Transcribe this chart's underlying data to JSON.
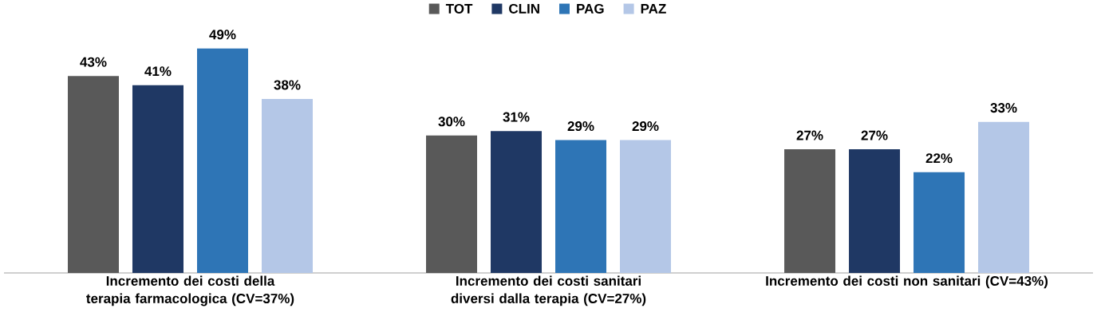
{
  "chart_data": {
    "type": "bar",
    "categories": [
      "Incremento dei costi della terapia farmacologica (CV=37%)",
      "Incremento dei costi sanitari diversi dalla terapia (CV=27%)",
      "Incremento dei costi non sanitari (CV=43%)"
    ],
    "series": [
      {
        "name": "TOT",
        "color": "#595959",
        "values": [
          43,
          30,
          27
        ],
        "value_labels": [
          "43%",
          "30%",
          "27%"
        ]
      },
      {
        "name": "CLIN",
        "color": "#1f3864",
        "values": [
          41,
          31,
          27
        ],
        "value_labels": [
          "41%",
          "31%",
          "27%"
        ]
      },
      {
        "name": "PAG",
        "color": "#2e75b6",
        "values": [
          49,
          29,
          22
        ],
        "value_labels": [
          "49%",
          "29%",
          "22%"
        ]
      },
      {
        "name": "PAZ",
        "color": "#b4c7e7",
        "values": [
          38,
          29,
          33
        ],
        "value_labels": [
          "38%",
          "29%",
          "33%"
        ]
      }
    ],
    "legend": "top"
  }
}
